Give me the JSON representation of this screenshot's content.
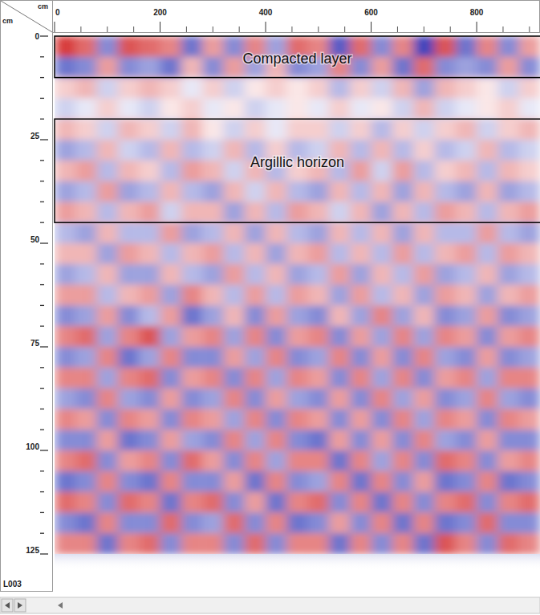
{
  "chart_data": {
    "type": "heatmap",
    "xlabel": "cm",
    "ylabel": "cm",
    "profile_label": "L003",
    "xlim": [
      0,
      920
    ],
    "ylim": [
      0,
      125
    ],
    "xticks": [
      0,
      200,
      400,
      600,
      800
    ],
    "yticks": [
      0,
      25,
      50,
      75,
      100,
      125
    ],
    "x_minor_ticks": [
      50,
      100,
      150,
      250,
      300,
      350,
      450,
      500,
      550,
      650,
      700,
      750,
      850,
      900
    ],
    "y_minor_ticks": [
      5,
      10,
      15,
      20,
      30,
      35,
      40,
      45,
      55,
      60,
      65,
      70,
      80,
      85,
      90,
      95,
      105,
      110,
      115,
      120
    ],
    "x_edges": [
      0,
      40,
      80,
      120,
      160,
      200,
      240,
      280,
      320,
      360,
      400,
      440,
      480,
      520,
      560,
      600,
      640,
      680,
      720,
      760,
      800,
      840,
      880,
      920
    ],
    "y_edges": [
      0,
      5,
      10,
      15,
      20,
      25,
      30,
      35,
      40,
      45,
      50,
      55,
      60,
      65,
      70,
      75,
      80,
      85,
      90,
      95,
      100,
      105,
      110,
      115,
      120,
      125
    ],
    "color_range": [
      -10,
      10
    ],
    "color_scale": [
      "#2a35b8",
      "#ffffff",
      "#d42a2a"
    ],
    "cells": [
      [
        8,
        6,
        -5,
        7,
        6,
        5,
        -6,
        4,
        -5,
        5,
        -4,
        6,
        5,
        -7,
        6,
        -5,
        5,
        -8,
        7,
        -6,
        5,
        -5,
        4
      ],
      [
        -6,
        -5,
        4,
        -5,
        -4,
        -6,
        3,
        -5,
        4,
        -4,
        3,
        -5,
        -4,
        5,
        -5,
        4,
        -6,
        6,
        -5,
        -4,
        -5,
        4,
        -5
      ],
      [
        2,
        3,
        -2,
        2,
        3,
        2,
        -1,
        2,
        -2,
        1,
        2,
        1,
        2,
        -3,
        2,
        -2,
        3,
        -4,
        3,
        2,
        1,
        -2,
        2
      ],
      [
        -2,
        -1,
        2,
        -1,
        -2,
        1,
        2,
        -1,
        1,
        -2,
        -1,
        1,
        -1,
        2,
        -1,
        1,
        -2,
        3,
        -2,
        -1,
        1,
        2,
        -1
      ],
      [
        3,
        2,
        -2,
        3,
        2,
        -2,
        3,
        1,
        -2,
        2,
        -1,
        2,
        2,
        -2,
        2,
        -3,
        2,
        -2,
        2,
        3,
        -2,
        2,
        3
      ],
      [
        -4,
        -3,
        3,
        -2,
        -3,
        3,
        -3,
        -2,
        3,
        -3,
        2,
        -3,
        -2,
        3,
        -3,
        3,
        -3,
        2,
        -3,
        -2,
        3,
        -3,
        -2
      ],
      [
        3,
        4,
        -3,
        3,
        2,
        -3,
        4,
        3,
        -2,
        3,
        -3,
        2,
        3,
        -3,
        4,
        -2,
        4,
        -3,
        2,
        3,
        -3,
        3,
        2
      ],
      [
        -4,
        -3,
        4,
        -4,
        -3,
        3,
        -3,
        -4,
        3,
        -2,
        3,
        -3,
        -4,
        3,
        -3,
        3,
        -4,
        3,
        -3,
        -4,
        3,
        -4,
        -3
      ],
      [
        4,
        3,
        -3,
        3,
        4,
        -2,
        3,
        3,
        -4,
        3,
        -3,
        4,
        3,
        -2,
        3,
        -4,
        3,
        -3,
        4,
        3,
        -3,
        3,
        4
      ],
      [
        -3,
        -4,
        3,
        -3,
        -3,
        4,
        -4,
        -3,
        3,
        -4,
        3,
        -3,
        -4,
        3,
        -3,
        3,
        -4,
        3,
        -3,
        -3,
        4,
        -3,
        -4
      ],
      [
        3,
        3,
        -4,
        4,
        3,
        -3,
        3,
        4,
        -3,
        3,
        -4,
        3,
        4,
        -3,
        3,
        -3,
        4,
        -3,
        3,
        4,
        -3,
        4,
        3
      ],
      [
        -4,
        -3,
        3,
        -4,
        -4,
        3,
        -3,
        -4,
        4,
        -3,
        3,
        -4,
        -3,
        4,
        -4,
        3,
        -3,
        4,
        -4,
        -3,
        3,
        -4,
        -3
      ],
      [
        4,
        4,
        -3,
        3,
        4,
        -4,
        5,
        3,
        -3,
        4,
        -3,
        4,
        3,
        -4,
        4,
        -3,
        3,
        -4,
        4,
        3,
        -4,
        3,
        4
      ],
      [
        -5,
        -4,
        4,
        -5,
        -3,
        4,
        -6,
        -4,
        3,
        -5,
        4,
        -4,
        -5,
        3,
        -4,
        5,
        -4,
        3,
        -5,
        -4,
        4,
        -5,
        -4
      ],
      [
        5,
        6,
        -4,
        5,
        7,
        -4,
        4,
        5,
        -4,
        5,
        -5,
        4,
        5,
        -5,
        4,
        -4,
        5,
        -4,
        5,
        4,
        -5,
        4,
        5
      ],
      [
        -5,
        -4,
        5,
        -6,
        -4,
        5,
        -5,
        -5,
        4,
        -4,
        5,
        -5,
        -4,
        5,
        -5,
        4,
        -5,
        5,
        -4,
        -5,
        4,
        -5,
        -4
      ],
      [
        5,
        5,
        -4,
        5,
        6,
        -5,
        4,
        5,
        -5,
        5,
        -4,
        5,
        4,
        -5,
        5,
        -4,
        5,
        -5,
        4,
        5,
        -4,
        5,
        5
      ],
      [
        -4,
        -5,
        5,
        -4,
        -5,
        4,
        -5,
        -4,
        5,
        -5,
        4,
        -4,
        -5,
        4,
        -5,
        5,
        -4,
        4,
        -5,
        -4,
        5,
        -4,
        -5
      ],
      [
        5,
        4,
        -5,
        5,
        4,
        -5,
        5,
        4,
        -4,
        5,
        -5,
        5,
        4,
        -5,
        4,
        -5,
        5,
        -4,
        5,
        4,
        -5,
        5,
        4
      ],
      [
        -5,
        -5,
        4,
        -6,
        -5,
        4,
        -4,
        -5,
        5,
        -4,
        5,
        -5,
        -6,
        4,
        -5,
        4,
        -5,
        5,
        -4,
        -5,
        4,
        -5,
        -5
      ],
      [
        5,
        6,
        -5,
        4,
        5,
        -5,
        6,
        4,
        -5,
        5,
        -4,
        5,
        5,
        -6,
        5,
        -4,
        5,
        -5,
        6,
        5,
        -5,
        4,
        5
      ],
      [
        -6,
        -5,
        5,
        -5,
        -6,
        5,
        -5,
        -5,
        4,
        -6,
        5,
        -5,
        -4,
        5,
        -6,
        5,
        -5,
        4,
        -6,
        -5,
        5,
        -6,
        -5
      ],
      [
        6,
        5,
        -5,
        6,
        5,
        -6,
        5,
        6,
        -5,
        4,
        -6,
        5,
        6,
        -5,
        5,
        -6,
        5,
        -5,
        5,
        6,
        -5,
        5,
        6
      ],
      [
        -5,
        -6,
        5,
        -5,
        -5,
        6,
        -5,
        -4,
        6,
        -5,
        5,
        -6,
        -5,
        4,
        -5,
        5,
        -6,
        5,
        -6,
        -5,
        6,
        -5,
        -5
      ],
      [
        5,
        5,
        -6,
        5,
        6,
        -5,
        5,
        5,
        -5,
        6,
        -5,
        5,
        5,
        -6,
        5,
        -5,
        5,
        -6,
        7,
        5,
        -5,
        6,
        5
      ]
    ],
    "annotations": [
      {
        "text": "Compacted layer",
        "y": [
          0,
          10
        ]
      },
      {
        "text": "Argillic horizon",
        "y": [
          20,
          45
        ]
      }
    ]
  }
}
